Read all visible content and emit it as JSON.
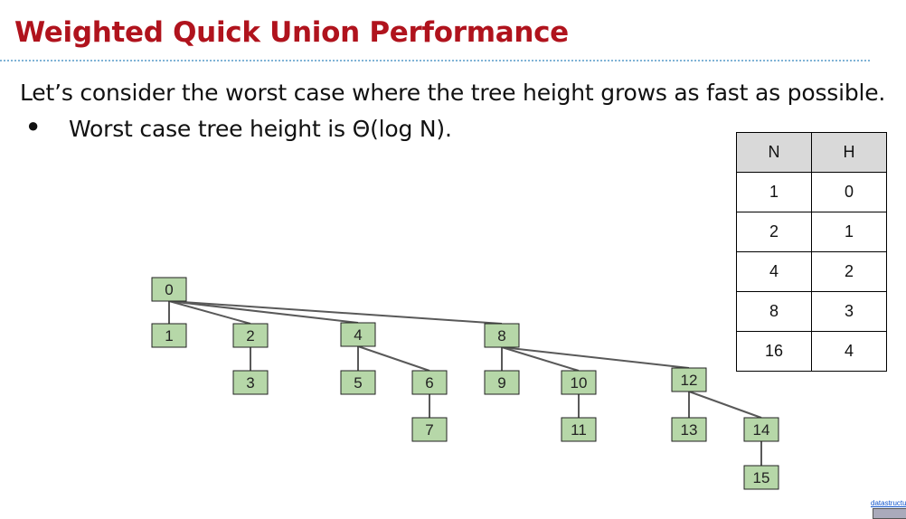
{
  "title": "Weighted Quick Union Performance",
  "intro": "Let’s consider the worst case where the tree height grows as fast as possible.",
  "bullet": {
    "marker": "●",
    "text": "Worst case tree height is Θ(log N)."
  },
  "table": {
    "headers": [
      "N",
      "H"
    ],
    "rows": [
      [
        "1",
        "0"
      ],
      [
        "2",
        "1"
      ],
      [
        "4",
        "2"
      ],
      [
        "8",
        "3"
      ],
      [
        "16",
        "4"
      ]
    ]
  },
  "tree": {
    "node_fill": "#b6d7a8",
    "node_border": "#222222",
    "edge_color": "#595959",
    "nodes": [
      "0",
      "1",
      "2",
      "3",
      "4",
      "5",
      "6",
      "7",
      "8",
      "9",
      "10",
      "11",
      "12",
      "13",
      "14",
      "15"
    ],
    "edges": [
      [
        "0",
        "1"
      ],
      [
        "0",
        "2"
      ],
      [
        "0",
        "4"
      ],
      [
        "0",
        "8"
      ],
      [
        "2",
        "3"
      ],
      [
        "4",
        "5"
      ],
      [
        "4",
        "6"
      ],
      [
        "6",
        "7"
      ],
      [
        "8",
        "9"
      ],
      [
        "8",
        "10"
      ],
      [
        "8",
        "12"
      ],
      [
        "10",
        "11"
      ],
      [
        "12",
        "13"
      ],
      [
        "12",
        "14"
      ],
      [
        "14",
        "15"
      ]
    ]
  },
  "footer": {
    "credit": "datastructur.es"
  }
}
